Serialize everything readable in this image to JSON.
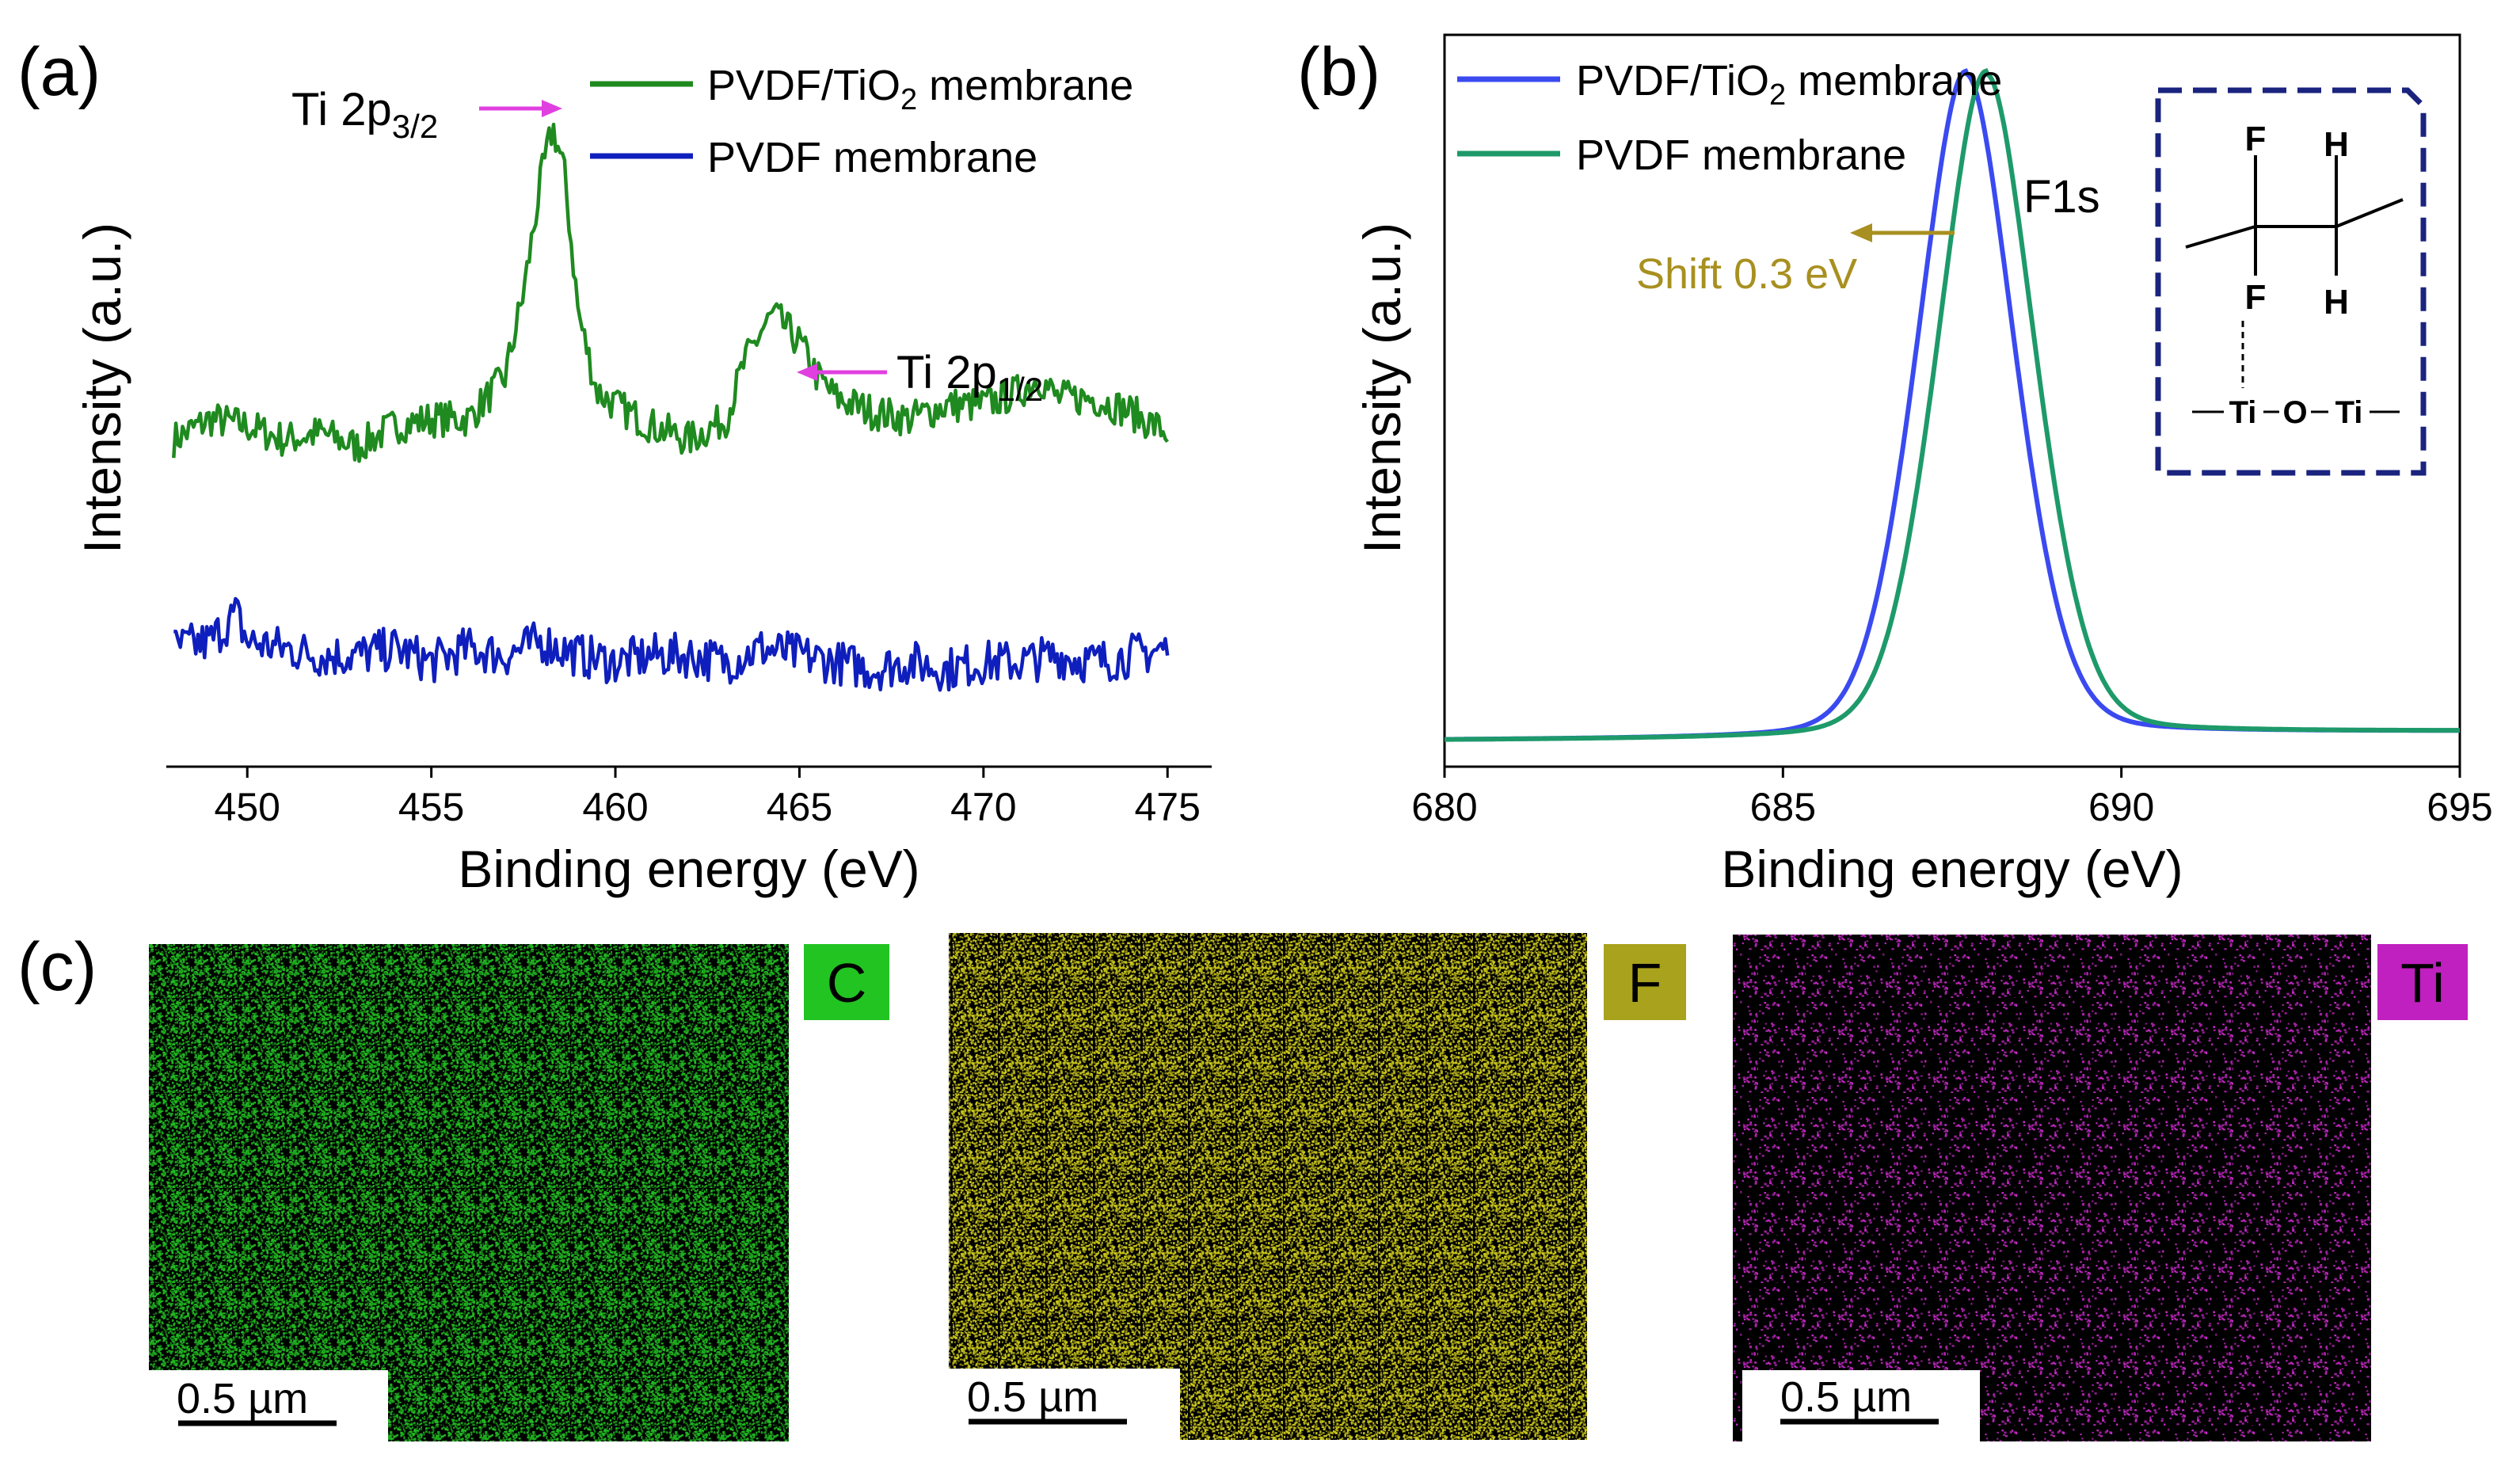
{
  "chart_data": [
    {
      "id": "a",
      "type": "line",
      "panel_label": "(a)",
      "xlabel": "Binding energy (eV)",
      "ylabel": "Intensity (a.u.)",
      "xlim": [
        447.8,
        476.2
      ],
      "ylim": [
        0,
        100
      ],
      "xticks": [
        450,
        455,
        460,
        465,
        470,
        475
      ],
      "xtick_labels": [
        "450",
        "455",
        "460",
        "465",
        "470",
        "475"
      ],
      "series": [
        {
          "name": "PVDF/TiO2 membrane",
          "legend_main": "PVDF/TiO",
          "legend_sub": "2",
          "legend_tail": " membrane",
          "color": "#1f8a1f",
          "x": [
            448.0,
            449.0,
            450.0,
            451.0,
            452.0,
            453.0,
            454.0,
            455.0,
            456.0,
            457.0,
            457.5,
            458.0,
            458.3,
            458.6,
            459.0,
            459.5,
            460.0,
            461.0,
            462.0,
            463.0,
            463.5,
            464.0,
            464.3,
            465.0,
            465.5,
            466.0,
            467.0,
            468.0,
            469.0,
            470.0,
            471.0,
            471.5,
            472.0,
            473.0,
            474.0,
            475.0
          ],
          "y": [
            47,
            50,
            49,
            47,
            48,
            46,
            49,
            50,
            50,
            56,
            68,
            85,
            92,
            86,
            65,
            54,
            52,
            49,
            47,
            50,
            58,
            63,
            65,
            61,
            56,
            53,
            51,
            50,
            52,
            52,
            54,
            56,
            53,
            53,
            51,
            48
          ]
        },
        {
          "name": "PVDF membrane",
          "legend_main": "PVDF membrane",
          "color": "#0f1fbd",
          "x": [
            448.0,
            449.0,
            449.7,
            450.0,
            451.0,
            452.0,
            453.0,
            454.0,
            455.0,
            456.0,
            457.0,
            458.0,
            459.0,
            460.0,
            461.0,
            462.0,
            463.0,
            464.0,
            465.0,
            466.0,
            467.0,
            468.0,
            469.0,
            470.0,
            471.0,
            472.0,
            473.0,
            474.0,
            475.0
          ],
          "y": [
            17,
            18,
            22,
            18,
            17,
            16,
            16,
            17,
            15,
            17,
            16,
            18,
            16,
            15,
            16,
            16,
            15,
            17,
            16,
            15,
            14,
            15,
            14,
            15,
            15,
            16,
            15,
            16,
            17
          ]
        }
      ],
      "annotations": [
        {
          "main": "Ti 2p",
          "sub": "3/2",
          "arrow_color": "#e040e0"
        },
        {
          "main": "Ti 2p",
          "sub": "1/2",
          "arrow_color": "#e040e0"
        }
      ]
    },
    {
      "id": "b",
      "type": "line",
      "panel_label": "(b)",
      "xlabel": "Binding energy (eV)",
      "ylabel": "Intensity (a.u.)",
      "xlim": [
        680,
        695
      ],
      "ylim": [
        -4,
        107
      ],
      "xticks": [
        680,
        685,
        690,
        695
      ],
      "xtick_labels": [
        "680",
        "685",
        "690",
        "695"
      ],
      "series": [
        {
          "name": "PVDF/TiO2 membrane",
          "legend_main": "PVDF/TiO",
          "legend_sub": "2",
          "legend_tail": " membrane",
          "color": "#3a4af0",
          "center": 687.7,
          "width": 0.75,
          "peak": 100,
          "baseline": 0
        },
        {
          "name": "PVDF membrane",
          "legend_main": "PVDF membrane",
          "color": "#1e9a6a",
          "center": 688.0,
          "width": 0.75,
          "peak": 100,
          "baseline": 0
        }
      ],
      "annotations": [
        {
          "text": "F1s"
        },
        {
          "text": "Shift 0.3 eV",
          "color": "#a89020"
        }
      ],
      "inset": {
        "atoms_top": [
          "F",
          "H"
        ],
        "atoms_bottom": [
          "F",
          "H"
        ],
        "backbone": [
          "Ti",
          "O",
          "Ti"
        ],
        "border_color": "#1a237e"
      }
    }
  ],
  "maps": {
    "panel_label": "(c)",
    "items": [
      {
        "element": "C",
        "color": "#22c422",
        "badge_bg": "#22c422",
        "badge_fg": "#000000",
        "scale": "0.5 µm"
      },
      {
        "element": "F",
        "color": "#d8d41c",
        "badge_bg": "#a8a21c",
        "badge_fg": "#000000",
        "scale": "0.5 µm"
      },
      {
        "element": "Ti",
        "color": "#d22bd2",
        "badge_bg": "#c020c0",
        "badge_fg": "#000000",
        "scale": "0.5 µm"
      }
    ]
  }
}
